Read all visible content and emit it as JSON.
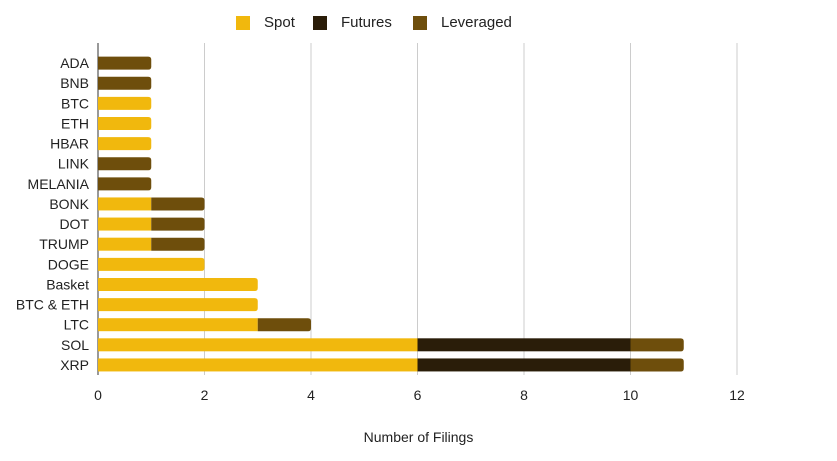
{
  "chart_data": {
    "type": "bar",
    "orientation": "horizontal",
    "stacked": true,
    "categories": [
      "ADA",
      "BNB",
      "BTC",
      "ETH",
      "HBAR",
      "LINK",
      "MELANIA",
      "BONK",
      "DOT",
      "TRUMP",
      "DOGE",
      "Basket",
      "BTC & ETH",
      "LTC",
      "SOL",
      "XRP"
    ],
    "series": [
      {
        "name": "Spot",
        "color": "#f1b80d",
        "values": [
          0,
          0,
          1,
          1,
          1,
          0,
          0,
          1,
          1,
          1,
          2,
          3,
          3,
          3,
          6,
          6
        ]
      },
      {
        "name": "Futures",
        "color": "#2a1d09",
        "values": [
          0,
          0,
          0,
          0,
          0,
          0,
          0,
          0,
          0,
          0,
          0,
          0,
          0,
          0,
          4,
          4
        ]
      },
      {
        "name": "Leveraged",
        "color": "#6e4e0c",
        "values": [
          1,
          1,
          0,
          0,
          0,
          1,
          1,
          1,
          1,
          1,
          0,
          0,
          0,
          1,
          1,
          1
        ]
      }
    ],
    "xlabel": "Number of Filings",
    "ylabel": "",
    "xlim": [
      0,
      12
    ],
    "xticks": [
      "0",
      "2",
      "4",
      "6",
      "8",
      "10",
      "12"
    ],
    "grid": true,
    "legend_position": "top"
  }
}
